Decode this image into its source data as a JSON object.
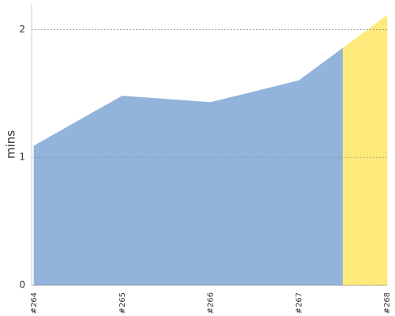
{
  "chart_data": {
    "type": "area",
    "ylabel": "mins",
    "categories": [
      "#264",
      "#265",
      "#266",
      "#267",
      "#268"
    ],
    "values": [
      1.09,
      1.48,
      1.43,
      1.6,
      2.11
    ],
    "colors": [
      "#92b3db",
      "#92b3db",
      "#92b3db",
      "#92b3db",
      "#fdea7a"
    ],
    "ylim": [
      0,
      2.2
    ],
    "yticks": [
      0,
      1,
      2
    ],
    "grid": true
  }
}
